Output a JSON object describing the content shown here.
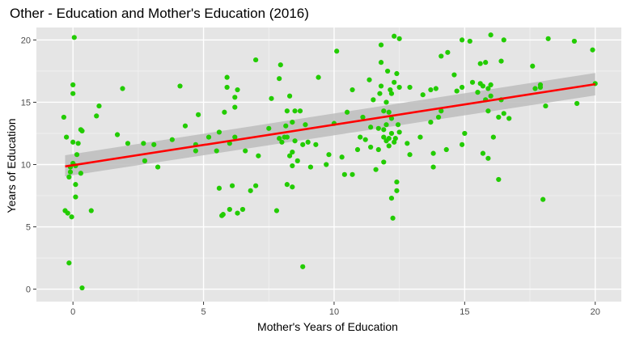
{
  "colors": {
    "panel": "#e5e5e5",
    "grid_major": "#ffffff",
    "points": "#22cc00",
    "fit_line": "#ff0000",
    "ribbon": "#bdbdbd"
  },
  "chart_data": {
    "type": "scatter",
    "title": "Other - Education and Mother's Education (2016)",
    "xlabel": "Mother's Years of Education",
    "ylabel": "Years of Education",
    "xlim": [
      -1.4,
      21.0
    ],
    "ylim": [
      -1.0,
      21.0
    ],
    "x_ticks": [
      0,
      5,
      10,
      15,
      20
    ],
    "y_ticks": [
      0,
      5,
      10,
      15,
      20
    ],
    "x_tick_labels": [
      "0",
      "5",
      "10",
      "15",
      "20"
    ],
    "y_tick_labels": [
      "0",
      "5",
      "10",
      "15",
      "20"
    ],
    "grid": true,
    "smooth": {
      "method": "linear",
      "x": [
        -0.3,
        20.0
      ],
      "y": [
        9.85,
        16.45
      ],
      "ci_lower": [
        9.05,
        15.55
      ],
      "ci_upper": [
        10.75,
        17.35
      ]
    },
    "points": [
      [
        -0.35,
        13.8
      ],
      [
        -0.3,
        6.3
      ],
      [
        -0.25,
        12.2
      ],
      [
        -0.2,
        6.1
      ],
      [
        -0.15,
        9.0
      ],
      [
        -0.15,
        2.1
      ],
      [
        -0.1,
        9.4
      ],
      [
        -0.1,
        9.8
      ],
      [
        -0.05,
        5.8
      ],
      [
        0.0,
        10.1
      ],
      [
        0.0,
        11.8
      ],
      [
        0.0,
        16.4
      ],
      [
        0.0,
        15.7
      ],
      [
        0.05,
        20.2
      ],
      [
        0.1,
        7.4
      ],
      [
        0.1,
        8.4
      ],
      [
        0.1,
        9.9
      ],
      [
        0.15,
        10.8
      ],
      [
        0.2,
        11.7
      ],
      [
        0.3,
        9.3
      ],
      [
        0.3,
        12.8
      ],
      [
        0.35,
        12.7
      ],
      [
        0.35,
        0.1
      ],
      [
        0.7,
        6.3
      ],
      [
        0.9,
        13.9
      ],
      [
        1.0,
        14.7
      ],
      [
        1.7,
        12.4
      ],
      [
        1.9,
        16.1
      ],
      [
        2.1,
        11.7
      ],
      [
        2.7,
        11.7
      ],
      [
        2.75,
        10.3
      ],
      [
        3.1,
        11.6
      ],
      [
        3.25,
        9.8
      ],
      [
        3.8,
        12.0
      ],
      [
        4.1,
        16.3
      ],
      [
        4.3,
        13.1
      ],
      [
        4.7,
        11.1
      ],
      [
        4.7,
        11.6
      ],
      [
        4.8,
        14.0
      ],
      [
        5.2,
        12.2
      ],
      [
        5.5,
        11.1
      ],
      [
        5.6,
        8.1
      ],
      [
        5.6,
        12.6
      ],
      [
        5.7,
        5.9
      ],
      [
        5.75,
        6.0
      ],
      [
        5.8,
        14.2
      ],
      [
        5.9,
        16.2
      ],
      [
        5.9,
        17.0
      ],
      [
        6.0,
        6.4
      ],
      [
        6.0,
        11.7
      ],
      [
        6.1,
        8.3
      ],
      [
        6.2,
        12.2
      ],
      [
        6.2,
        14.6
      ],
      [
        6.3,
        16.0
      ],
      [
        6.2,
        15.4
      ],
      [
        6.3,
        6.1
      ],
      [
        6.5,
        6.4
      ],
      [
        6.6,
        11.1
      ],
      [
        6.8,
        7.9
      ],
      [
        7.0,
        8.3
      ],
      [
        7.0,
        18.4
      ],
      [
        7.1,
        10.7
      ],
      [
        7.5,
        12.9
      ],
      [
        7.6,
        15.3
      ],
      [
        7.8,
        6.3
      ],
      [
        7.9,
        12.1
      ],
      [
        7.9,
        16.9
      ],
      [
        7.95,
        18.0
      ],
      [
        8.0,
        11.8
      ],
      [
        8.1,
        12.2
      ],
      [
        8.15,
        13.1
      ],
      [
        8.2,
        8.4
      ],
      [
        8.2,
        12.2
      ],
      [
        8.2,
        14.3
      ],
      [
        8.3,
        15.5
      ],
      [
        8.3,
        10.7
      ],
      [
        8.4,
        13.4
      ],
      [
        8.4,
        11.0
      ],
      [
        8.4,
        9.9
      ],
      [
        8.4,
        8.2
      ],
      [
        8.5,
        14.3
      ],
      [
        8.5,
        11.9
      ],
      [
        8.6,
        10.3
      ],
      [
        8.7,
        14.3
      ],
      [
        8.8,
        1.8
      ],
      [
        8.8,
        11.6
      ],
      [
        8.9,
        13.2
      ],
      [
        9.0,
        11.8
      ],
      [
        9.1,
        9.8
      ],
      [
        9.3,
        11.6
      ],
      [
        9.4,
        17.0
      ],
      [
        9.7,
        10.0
      ],
      [
        9.8,
        10.8
      ],
      [
        10.0,
        13.3
      ],
      [
        10.1,
        19.1
      ],
      [
        10.3,
        10.6
      ],
      [
        10.4,
        9.2
      ],
      [
        10.5,
        14.2
      ],
      [
        10.7,
        9.2
      ],
      [
        10.7,
        16.0
      ],
      [
        10.9,
        11.2
      ],
      [
        11.0,
        12.2
      ],
      [
        11.1,
        13.8
      ],
      [
        11.2,
        12.0
      ],
      [
        11.35,
        16.8
      ],
      [
        11.4,
        13.0
      ],
      [
        11.4,
        11.4
      ],
      [
        11.5,
        15.2
      ],
      [
        11.6,
        9.6
      ],
      [
        11.7,
        11.2
      ],
      [
        11.7,
        12.9
      ],
      [
        11.75,
        15.7
      ],
      [
        11.8,
        16.3
      ],
      [
        11.8,
        19.6
      ],
      [
        11.8,
        18.2
      ],
      [
        11.9,
        12.2
      ],
      [
        11.9,
        14.3
      ],
      [
        11.9,
        10.2
      ],
      [
        11.9,
        12.8
      ],
      [
        12.0,
        11.9
      ],
      [
        12.0,
        13.2
      ],
      [
        12.0,
        15.0
      ],
      [
        12.05,
        17.5
      ],
      [
        12.1,
        12.1
      ],
      [
        12.1,
        14.2
      ],
      [
        12.1,
        11.5
      ],
      [
        12.15,
        16.0
      ],
      [
        12.2,
        13.7
      ],
      [
        12.2,
        7.3
      ],
      [
        12.2,
        12.5
      ],
      [
        12.2,
        15.7
      ],
      [
        12.25,
        5.7
      ],
      [
        12.3,
        16.6
      ],
      [
        12.3,
        20.3
      ],
      [
        12.3,
        11.8
      ],
      [
        12.35,
        12.1
      ],
      [
        12.4,
        17.3
      ],
      [
        12.4,
        7.9
      ],
      [
        12.4,
        8.6
      ],
      [
        12.45,
        13.2
      ],
      [
        12.5,
        20.1
      ],
      [
        12.5,
        12.6
      ],
      [
        12.5,
        16.2
      ],
      [
        12.8,
        11.7
      ],
      [
        12.9,
        10.8
      ],
      [
        12.9,
        16.2
      ],
      [
        13.3,
        12.2
      ],
      [
        13.4,
        15.6
      ],
      [
        13.7,
        13.4
      ],
      [
        13.7,
        16.0
      ],
      [
        13.8,
        10.9
      ],
      [
        13.8,
        9.8
      ],
      [
        13.9,
        16.1
      ],
      [
        14.0,
        13.8
      ],
      [
        14.1,
        14.3
      ],
      [
        14.1,
        18.7
      ],
      [
        14.3,
        11.2
      ],
      [
        14.35,
        19.0
      ],
      [
        14.6,
        17.2
      ],
      [
        14.7,
        15.9
      ],
      [
        14.9,
        16.2
      ],
      [
        14.9,
        20.0
      ],
      [
        14.9,
        11.6
      ],
      [
        15.0,
        12.5
      ],
      [
        15.2,
        19.9
      ],
      [
        15.3,
        16.6
      ],
      [
        15.5,
        15.8
      ],
      [
        15.6,
        16.5
      ],
      [
        15.6,
        18.1
      ],
      [
        15.7,
        10.9
      ],
      [
        15.7,
        16.3
      ],
      [
        15.8,
        15.2
      ],
      [
        15.8,
        18.2
      ],
      [
        15.9,
        10.5
      ],
      [
        15.9,
        14.3
      ],
      [
        15.9,
        16.1
      ],
      [
        16.0,
        15.5
      ],
      [
        16.0,
        20.4
      ],
      [
        16.0,
        16.4
      ],
      [
        16.1,
        12.2
      ],
      [
        16.3,
        13.8
      ],
      [
        16.3,
        8.8
      ],
      [
        16.4,
        15.2
      ],
      [
        16.4,
        18.3
      ],
      [
        16.5,
        14.1
      ],
      [
        16.5,
        20.0
      ],
      [
        16.7,
        13.7
      ],
      [
        17.6,
        17.9
      ],
      [
        17.7,
        16.1
      ],
      [
        17.9,
        16.4
      ],
      [
        17.9,
        16.2
      ],
      [
        18.0,
        7.2
      ],
      [
        18.1,
        14.7
      ],
      [
        18.2,
        20.1
      ],
      [
        19.2,
        19.9
      ],
      [
        19.3,
        14.9
      ],
      [
        19.9,
        19.2
      ],
      [
        20.0,
        16.5
      ]
    ]
  }
}
